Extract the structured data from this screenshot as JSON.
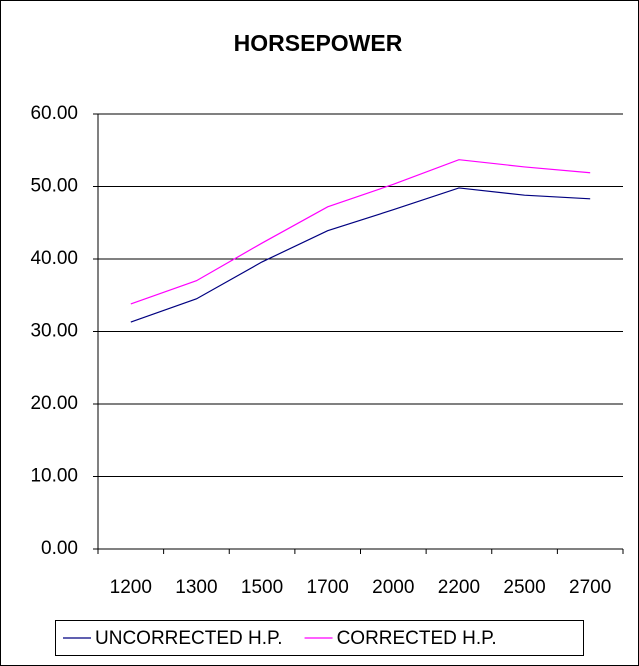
{
  "chart_data": {
    "type": "line",
    "title": "HORSEPOWER",
    "categories": [
      "1200",
      "1300",
      "1500",
      "1700",
      "2000",
      "2200",
      "2500",
      "2700"
    ],
    "series": [
      {
        "name": "UNCORRECTED H.P.",
        "color": "#000080",
        "values": [
          31.3,
          34.5,
          39.6,
          43.9,
          46.8,
          49.8,
          48.8,
          48.3
        ]
      },
      {
        "name": "CORRECTED H.P.",
        "color": "#ff00ff",
        "values": [
          33.8,
          37.0,
          42.2,
          47.2,
          50.3,
          53.7,
          52.7,
          51.9
        ]
      }
    ],
    "ylim": [
      0,
      60
    ],
    "yticks": [
      {
        "value": 0,
        "label": "0.00"
      },
      {
        "value": 10,
        "label": "10.00"
      },
      {
        "value": 20,
        "label": "20.00"
      },
      {
        "value": 30,
        "label": "30.00"
      },
      {
        "value": 40,
        "label": "40.00"
      },
      {
        "value": 50,
        "label": "50.00"
      },
      {
        "value": 60,
        "label": "60.00"
      }
    ],
    "grid": true,
    "legend": "bottom"
  }
}
